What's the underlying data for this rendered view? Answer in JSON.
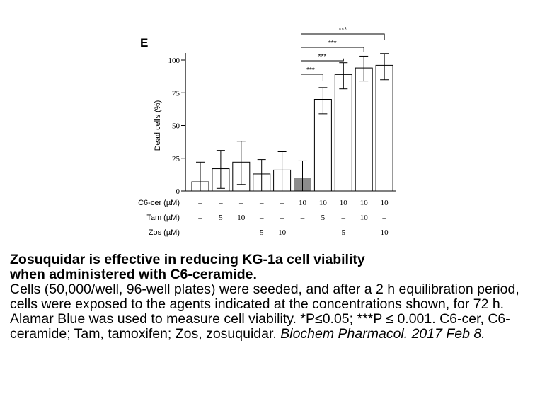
{
  "chart_data": {
    "type": "bar",
    "panel_label": "E",
    "ylabel": "Dead cells (%)",
    "ylim": [
      0,
      100
    ],
    "yticks": [
      "0",
      "25",
      "50",
      "75",
      "100"
    ],
    "conditions": [
      {
        "name": "C6-cer (µM)",
        "values": [
          "–",
          "–",
          "–",
          "–",
          "–",
          "10",
          "10",
          "10",
          "10",
          "10"
        ]
      },
      {
        "name": "Tam (µM)",
        "values": [
          "–",
          "5",
          "10",
          "–",
          "–",
          "–",
          "5",
          "–",
          "10",
          "–"
        ]
      },
      {
        "name": "Zos (µM)",
        "values": [
          "–",
          "–",
          "–",
          "5",
          "10",
          "–",
          "–",
          "5",
          "–",
          "10"
        ]
      }
    ],
    "values": [
      7,
      17,
      22,
      13,
      16,
      10,
      70,
      89,
      94,
      96
    ],
    "error_low": [
      7,
      15,
      17,
      13,
      16,
      10,
      11,
      11,
      10,
      11
    ],
    "error_high": [
      15,
      14,
      16,
      11,
      14,
      13,
      9,
      9,
      9,
      9
    ],
    "highlight_index": 5,
    "highlight_color": "#8c8c8c",
    "significance": [
      {
        "from": 5,
        "to": 6,
        "label": "***"
      },
      {
        "from": 5,
        "to": 7,
        "label": "***"
      },
      {
        "from": 5,
        "to": 8,
        "label": "***"
      },
      {
        "from": 5,
        "to": 9,
        "label": "***"
      }
    ]
  },
  "caption": {
    "title_line1": "Zosuquidar is effective in reducing KG-1a cell viability",
    "title_line2": "when administered with C6-ceramide.",
    "body": "Cells (50,000/well, 96-well plates) were seeded, and after a 2 h equilibration period, cells were exposed to the agents indicated at the concentrations shown, for 72 h. Alamar Blue was used to measure cell viability. *P≤0.05; ***P ≤ 0.001. C6-cer, C6-ceramide; Tam, tamoxifen; Zos, zosuquidar.",
    "citation": "Biochem Pharmacol. 2017 Feb 8."
  }
}
